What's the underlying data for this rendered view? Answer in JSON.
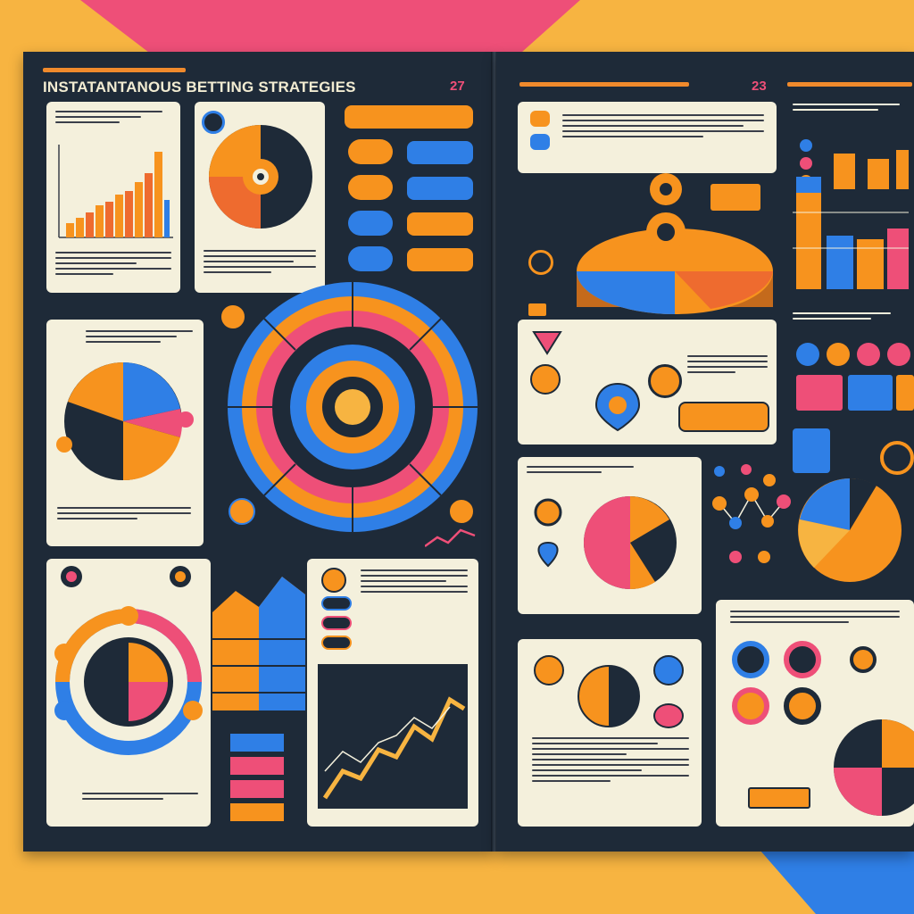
{
  "page_left": {
    "title": "INSTATANTANOUS BETTING STRATEGIES",
    "page_number": "27"
  },
  "page_right": {
    "page_number": "23"
  },
  "colors": {
    "orange": "#f7931e",
    "pink": "#ee4f78",
    "blue": "#2f7fe6",
    "navy": "#1e2a38",
    "cream": "#f4f0dc",
    "background": "#f7b441"
  },
  "icons": [
    "coin-icon",
    "star-icon",
    "chart-icon",
    "pie-icon",
    "gauge-icon",
    "heart-icon"
  ]
}
